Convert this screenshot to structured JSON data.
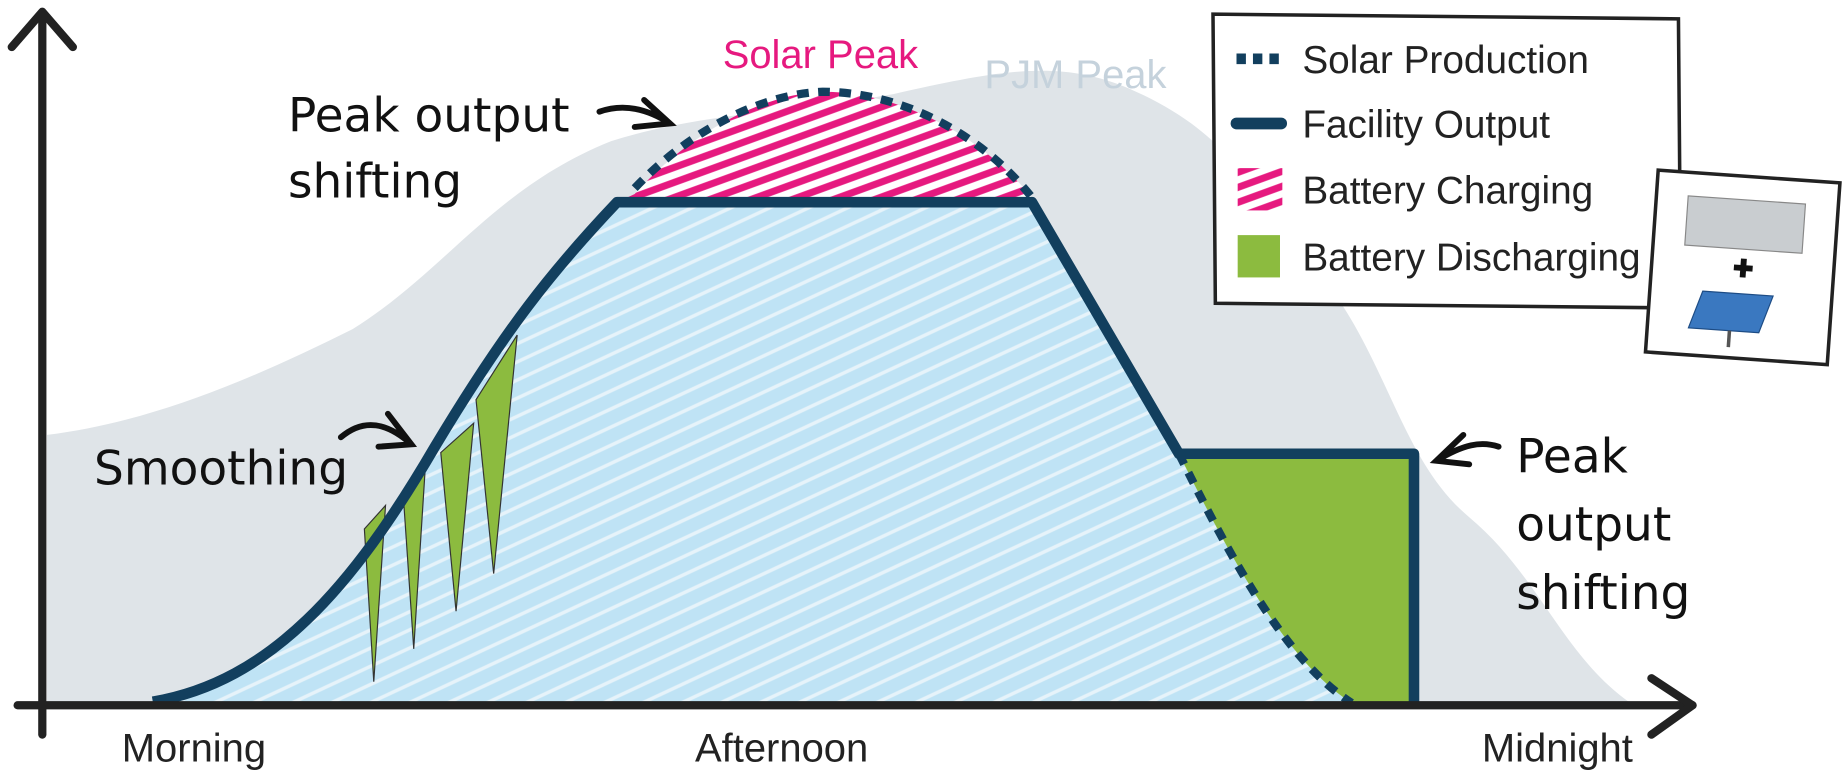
{
  "annotations": {
    "solar_peak": "Solar Peak",
    "pjm_peak": "PJM Peak",
    "left_shift": [
      "Peak output",
      "shifting"
    ],
    "smoothing": "Smoothing",
    "right_shift": [
      "Peak",
      "output",
      "shifting"
    ]
  },
  "legend": [
    "Solar Production",
    "Facility Output",
    "Battery Charging",
    "Battery Discharging"
  ],
  "x_labels": [
    "Morning",
    "Afternoon",
    "Midnight"
  ]
}
